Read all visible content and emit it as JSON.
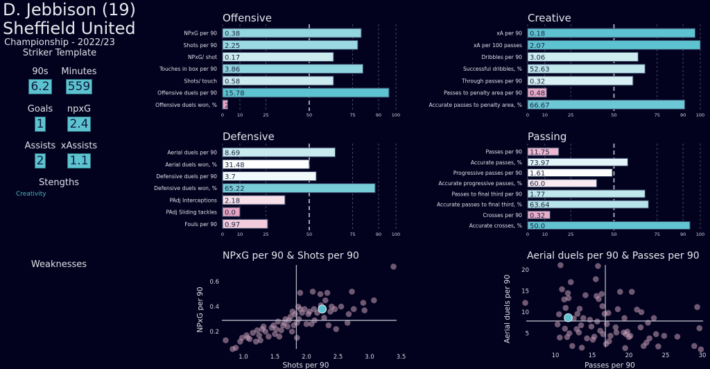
{
  "header": {
    "player": "D. Jebbison (19)",
    "team": "Sheffield United",
    "competition": "Championship - 2022/23",
    "template": "Striker Template"
  },
  "stats": [
    {
      "label": "90s",
      "value": "6.2"
    },
    {
      "label": "Minutes",
      "value": "559"
    },
    {
      "label": "Goals",
      "value": "1"
    },
    {
      "label": "npxG",
      "value": "2.4"
    },
    {
      "label": "Assists",
      "value": "2"
    },
    {
      "label": "xAssists",
      "value": "1.1"
    }
  ],
  "strengths": {
    "title": "Stengths",
    "items": [
      "Creativity"
    ]
  },
  "weaknesses": {
    "title": "Weaknesses",
    "items": []
  },
  "colors": {
    "background": "#02021e",
    "high": "#5ec3d0",
    "low": "#e8a6c4",
    "mid": "#ffffff",
    "scatter_point": "#c9a0b8",
    "player_point": "#5ec3d0"
  },
  "chart_data": [
    {
      "type": "bar",
      "orientation": "horizontal",
      "title": "Offensive",
      "xlim": [
        0,
        100
      ],
      "xticks": [
        0,
        10,
        25,
        50,
        75,
        90,
        100
      ],
      "reference_line": 50,
      "categories": [
        "NPxG per 90",
        "Shots per 90",
        "NPxG/ shot",
        "Touches in box per 90",
        "Shots/ touch",
        "Offensive duels per 90",
        "Offensive duels won, %"
      ],
      "labels": [
        "0.38",
        "2.25",
        "0.17",
        "3.86",
        "0.58",
        "15.78",
        "2"
      ],
      "percentiles": [
        80,
        78,
        64,
        81,
        64,
        96,
        3
      ]
    },
    {
      "type": "bar",
      "orientation": "horizontal",
      "title": "Creative",
      "xlim": [
        0,
        100
      ],
      "xticks": [
        0,
        10,
        25,
        50,
        75,
        90,
        100
      ],
      "reference_line": 50,
      "categories": [
        "xA per 90",
        "xA per 100 passes",
        "Dribbles per 90",
        "Successful dribbles, %",
        "Through passes per 90",
        "Passes to penalty area per 90",
        "Accurate passes to penalty area, %"
      ],
      "labels": [
        "0.18",
        "2.07",
        "3.06",
        "52.63",
        "0.32",
        "0.48",
        "66.67"
      ],
      "percentiles": [
        97,
        100,
        64,
        68,
        61,
        11,
        91
      ]
    },
    {
      "type": "bar",
      "orientation": "horizontal",
      "title": "Defensive",
      "xlim": [
        0,
        100
      ],
      "xticks": [
        0,
        10,
        25,
        50,
        75,
        90,
        100
      ],
      "reference_line": 50,
      "categories": [
        "Aerial duels per 90",
        "Aerial duels won, %",
        "Defensive duels per 90",
        "Defensive duels won, %",
        "PAdj Interceptions",
        "PAdj Sliding tackles",
        "Fouls per 90"
      ],
      "labels": [
        "8.69",
        "31.48",
        "3.7",
        "65.22",
        "2.18",
        "0.0",
        "0.97"
      ],
      "percentiles": [
        65,
        50,
        54,
        88,
        36,
        10,
        26
      ]
    },
    {
      "type": "bar",
      "orientation": "horizontal",
      "title": "Passing",
      "xlim": [
        0,
        100
      ],
      "xticks": [
        0,
        10,
        25,
        50,
        75,
        90,
        100
      ],
      "reference_line": 50,
      "categories": [
        "Passes per 90",
        "Accurate passes, %",
        "Progressive passes per 90",
        "Accurate progressive passes, %",
        "Passes to final third per 90",
        "Accurate passes to final third, %",
        "Crosses per 90",
        "Accurate crosses, %"
      ],
      "labels": [
        "11.75",
        "73.97",
        "1.61",
        "60.0",
        "1.77",
        "63.64",
        "0.32",
        "50.0"
      ],
      "percentiles": [
        18,
        58,
        49,
        40,
        68,
        70,
        13,
        94
      ]
    },
    {
      "type": "scatter",
      "title": "NPxG per 90 & Shots per 90",
      "xlabel": "Shots per 90",
      "ylabel": "NPxG per 90",
      "xlim": [
        0.65,
        3.45
      ],
      "ylim": [
        0.05,
        0.72
      ],
      "xticks": [
        1.0,
        1.5,
        2.0,
        2.5,
        3.0,
        3.5
      ],
      "yticks": [
        0.2,
        0.4,
        0.6
      ],
      "median_x": 1.84,
      "median_y": 0.29,
      "player": {
        "x": 2.25,
        "y": 0.38
      },
      "points": [
        [
          0.72,
          0.13
        ],
        [
          0.83,
          0.06
        ],
        [
          0.88,
          0.07
        ],
        [
          0.95,
          0.12
        ],
        [
          0.98,
          0.15
        ],
        [
          1.05,
          0.17
        ],
        [
          1.07,
          0.15
        ],
        [
          1.1,
          0.14
        ],
        [
          1.15,
          0.19
        ],
        [
          1.2,
          0.12
        ],
        [
          1.22,
          0.21
        ],
        [
          1.25,
          0.17
        ],
        [
          1.27,
          0.13
        ],
        [
          1.3,
          0.22
        ],
        [
          1.32,
          0.24
        ],
        [
          1.35,
          0.2
        ],
        [
          1.4,
          0.16
        ],
        [
          1.45,
          0.23
        ],
        [
          1.48,
          0.25
        ],
        [
          1.5,
          0.18
        ],
        [
          1.52,
          0.22
        ],
        [
          1.55,
          0.28
        ],
        [
          1.57,
          0.16
        ],
        [
          1.6,
          0.21
        ],
        [
          1.63,
          0.25
        ],
        [
          1.65,
          0.27
        ],
        [
          1.67,
          0.3
        ],
        [
          1.7,
          0.24
        ],
        [
          1.72,
          0.29
        ],
        [
          1.75,
          0.32
        ],
        [
          1.77,
          0.2
        ],
        [
          1.78,
          0.36
        ],
        [
          1.8,
          0.25
        ],
        [
          1.82,
          0.34
        ],
        [
          1.85,
          0.27
        ],
        [
          1.85,
          0.15
        ],
        [
          1.87,
          0.4
        ],
        [
          1.88,
          0.3
        ],
        [
          1.9,
          0.51
        ],
        [
          1.9,
          0.38
        ],
        [
          1.93,
          0.35
        ],
        [
          1.97,
          0.38
        ],
        [
          2.0,
          0.26
        ],
        [
          2.03,
          0.34
        ],
        [
          2.05,
          0.36
        ],
        [
          2.08,
          0.26
        ],
        [
          2.1,
          0.52
        ],
        [
          2.12,
          0.38
        ],
        [
          2.13,
          0.29
        ],
        [
          2.17,
          0.35
        ],
        [
          2.22,
          0.5
        ],
        [
          2.23,
          0.41
        ],
        [
          2.28,
          0.31
        ],
        [
          2.3,
          0.45
        ],
        [
          2.33,
          0.51
        ],
        [
          2.35,
          0.25
        ],
        [
          2.38,
          0.36
        ],
        [
          2.4,
          0.4
        ],
        [
          2.45,
          0.38
        ],
        [
          2.47,
          0.22
        ],
        [
          2.55,
          0.4
        ],
        [
          2.65,
          0.27
        ],
        [
          2.67,
          0.34
        ],
        [
          2.72,
          0.52
        ],
        [
          2.75,
          0.38
        ],
        [
          2.9,
          0.43
        ],
        [
          2.92,
          0.37
        ],
        [
          3.07,
          0.45
        ],
        [
          3.38,
          0.72
        ]
      ]
    },
    {
      "type": "scatter",
      "title": "Aerial duels per 90 & Passes per 90",
      "xlabel": "Passes per 90",
      "ylabel": "Aerial duels per 90",
      "xlim": [
        5.5,
        30.5
      ],
      "ylim": [
        0,
        22
      ],
      "xticks": [
        10,
        15,
        20,
        25,
        30
      ],
      "yticks": [
        5,
        10,
        15,
        20
      ],
      "median_x": 16.8,
      "median_y": 7.9,
      "player": {
        "x": 11.75,
        "y": 8.69
      },
      "points": [
        [
          5.9,
          12.2
        ],
        [
          10.3,
          7.1
        ],
        [
          10.5,
          9.5
        ],
        [
          10.6,
          4.0
        ],
        [
          10.7,
          21.1
        ],
        [
          10.9,
          15.4
        ],
        [
          11.2,
          13.0
        ],
        [
          11.3,
          6.1
        ],
        [
          11.4,
          11.0
        ],
        [
          11.6,
          4.1
        ],
        [
          11.7,
          14.5
        ],
        [
          11.8,
          13.3
        ],
        [
          11.9,
          5.0
        ],
        [
          12.1,
          17.1
        ],
        [
          12.3,
          2.0
        ],
        [
          12.5,
          8.5
        ],
        [
          12.9,
          6.0
        ],
        [
          13.0,
          9.6
        ],
        [
          13.2,
          5.2
        ],
        [
          13.3,
          10.8
        ],
        [
          13.5,
          6.9
        ],
        [
          13.6,
          1.6
        ],
        [
          13.8,
          8.6
        ],
        [
          14.1,
          14.0
        ],
        [
          14.3,
          3.8
        ],
        [
          14.7,
          8.2
        ],
        [
          14.9,
          6.6
        ],
        [
          15.1,
          3.5
        ],
        [
          15.3,
          4.2
        ],
        [
          15.5,
          17.8
        ],
        [
          15.6,
          13.8
        ],
        [
          15.7,
          7.8
        ],
        [
          15.8,
          20.9
        ],
        [
          15.9,
          13.1
        ],
        [
          16.1,
          5.6
        ],
        [
          16.3,
          14.3
        ],
        [
          16.4,
          11.4
        ],
        [
          16.5,
          4.8
        ],
        [
          16.7,
          9.6
        ],
        [
          16.9,
          2.5
        ],
        [
          17.0,
          7.2
        ],
        [
          17.2,
          9.8
        ],
        [
          17.3,
          3.1
        ],
        [
          17.5,
          4.4
        ],
        [
          18.2,
          6.4
        ],
        [
          18.3,
          5.2
        ],
        [
          18.5,
          10.7
        ],
        [
          18.8,
          14.8
        ],
        [
          19.3,
          5.2
        ],
        [
          19.4,
          8.6
        ],
        [
          19.5,
          1.5
        ],
        [
          19.6,
          4.8
        ],
        [
          19.8,
          5.4
        ],
        [
          20.0,
          4.1
        ],
        [
          20.2,
          4.4
        ],
        [
          20.4,
          14.8
        ],
        [
          21.1,
          10.6
        ],
        [
          21.6,
          6.4
        ],
        [
          21.7,
          10.0
        ],
        [
          22.0,
          2.0
        ],
        [
          22.4,
          2.8
        ],
        [
          22.6,
          7.5
        ],
        [
          22.8,
          3.8
        ],
        [
          23.4,
          8.6
        ],
        [
          23.7,
          4.8
        ],
        [
          24.0,
          1.9
        ],
        [
          24.8,
          4.4
        ],
        [
          26.6,
          4.2
        ],
        [
          28.9,
          2.0
        ],
        [
          29.3,
          11.2
        ],
        [
          29.6,
          6.2
        ],
        [
          29.8,
          1.2
        ]
      ]
    }
  ]
}
